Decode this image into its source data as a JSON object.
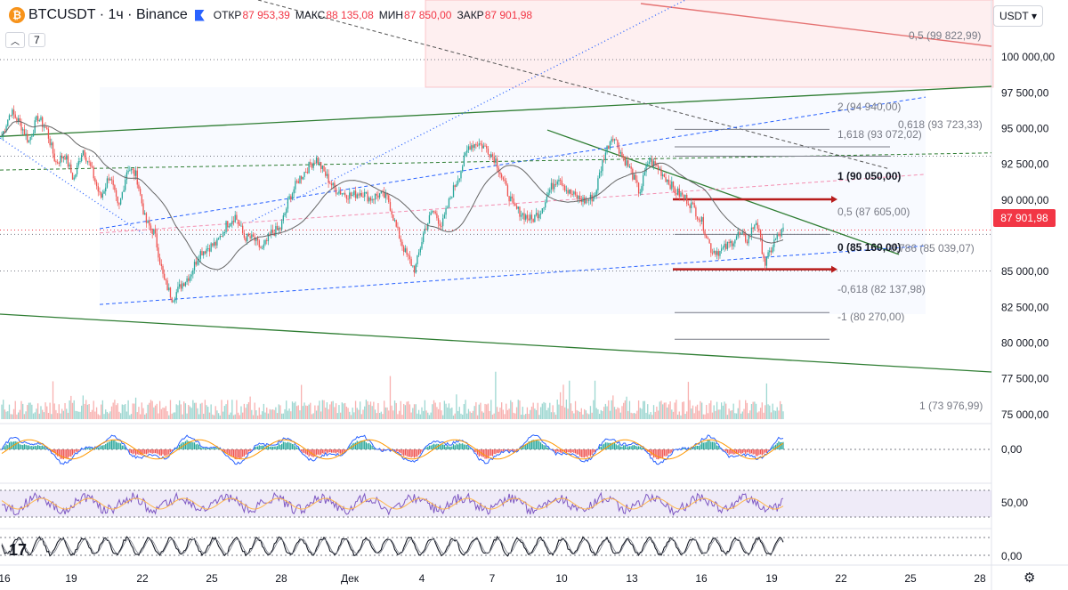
{
  "header": {
    "symbol": "BTCUSDT · 1ч · Binance",
    "coin_icon": "bitcoin-icon",
    "open_label": "ОТКР",
    "open_value": "87 953,39",
    "high_label": "МАКС",
    "high_value": "88 135,08",
    "low_label": "МИН",
    "low_value": "87 850,00",
    "close_label": "ЗАКР",
    "close_value": "87 901,98"
  },
  "indicators_toggle": {
    "count": "7"
  },
  "currency": "USDT",
  "last_price": "87 901,98",
  "price_axis": [
    "100 000,00",
    "97 500,00",
    "95 000,00",
    "92 500,00",
    "90 000,00",
    "85 000,00",
    "82 500,00",
    "80 000,00",
    "77 500,00",
    "75 000,00"
  ],
  "macd_axis": "0,00",
  "rsi_axis": "50,00",
  "stoch_axis": "0,00",
  "time_axis": [
    "16",
    "19",
    "22",
    "25",
    "28",
    "Дек",
    "4",
    "7",
    "10",
    "13",
    "16",
    "19",
    "22",
    "25",
    "28"
  ],
  "fib_labels": [
    "0,5 (99 822,99)",
    "2 (94 940,00)",
    "0,618 (93 723,33)",
    "1,618 (93 072,02)",
    "1 (90 050,00)",
    "0,5 (87 605,00)",
    "0 (85 160,00)",
    "0,786 (85 039,07)",
    "-0,618 (82 137,98)",
    "-1 (80 270,00)",
    "1 (73 976,99)"
  ],
  "colors": {
    "up": "#26a69a",
    "down": "#ef5350",
    "accent": "#f23645",
    "trend": "#2e7d32"
  },
  "chart_data": {
    "type": "candlestick",
    "title": "BTCUSDT · 1ч · Binance",
    "ylim": [
      73500,
      101500
    ],
    "close_path": [
      94500,
      96200,
      95400,
      94100,
      95800,
      94900,
      92600,
      93200,
      91400,
      93600,
      92100,
      90100,
      91800,
      89300,
      92300,
      91700,
      88500,
      87700,
      84500,
      83100,
      84100,
      84800,
      86300,
      86700,
      87000,
      88300,
      88900,
      87400,
      87300,
      86500,
      87700,
      88000,
      90100,
      91400,
      92200,
      92900,
      91800,
      90800,
      90500,
      90300,
      90600,
      90100,
      90400,
      90100,
      87900,
      86200,
      85100,
      87800,
      89300,
      88200,
      90300,
      91900,
      93800,
      94000,
      93600,
      92800,
      91000,
      89500,
      89000,
      88600,
      89300,
      90700,
      91700,
      90600,
      90200,
      89900,
      90300,
      93000,
      94600,
      93200,
      92100,
      90500,
      92800,
      92300,
      91500,
      90600,
      90200,
      89500,
      88400,
      86500,
      86400,
      86900,
      87600,
      87200,
      88600,
      85500,
      87100,
      87900
    ],
    "candle_count": 520,
    "fib_levels": [
      99822.99,
      94940,
      93723.33,
      93072.02,
      90050,
      87605,
      85160,
      85039.07,
      82137.98,
      80270,
      73976.99
    ]
  }
}
